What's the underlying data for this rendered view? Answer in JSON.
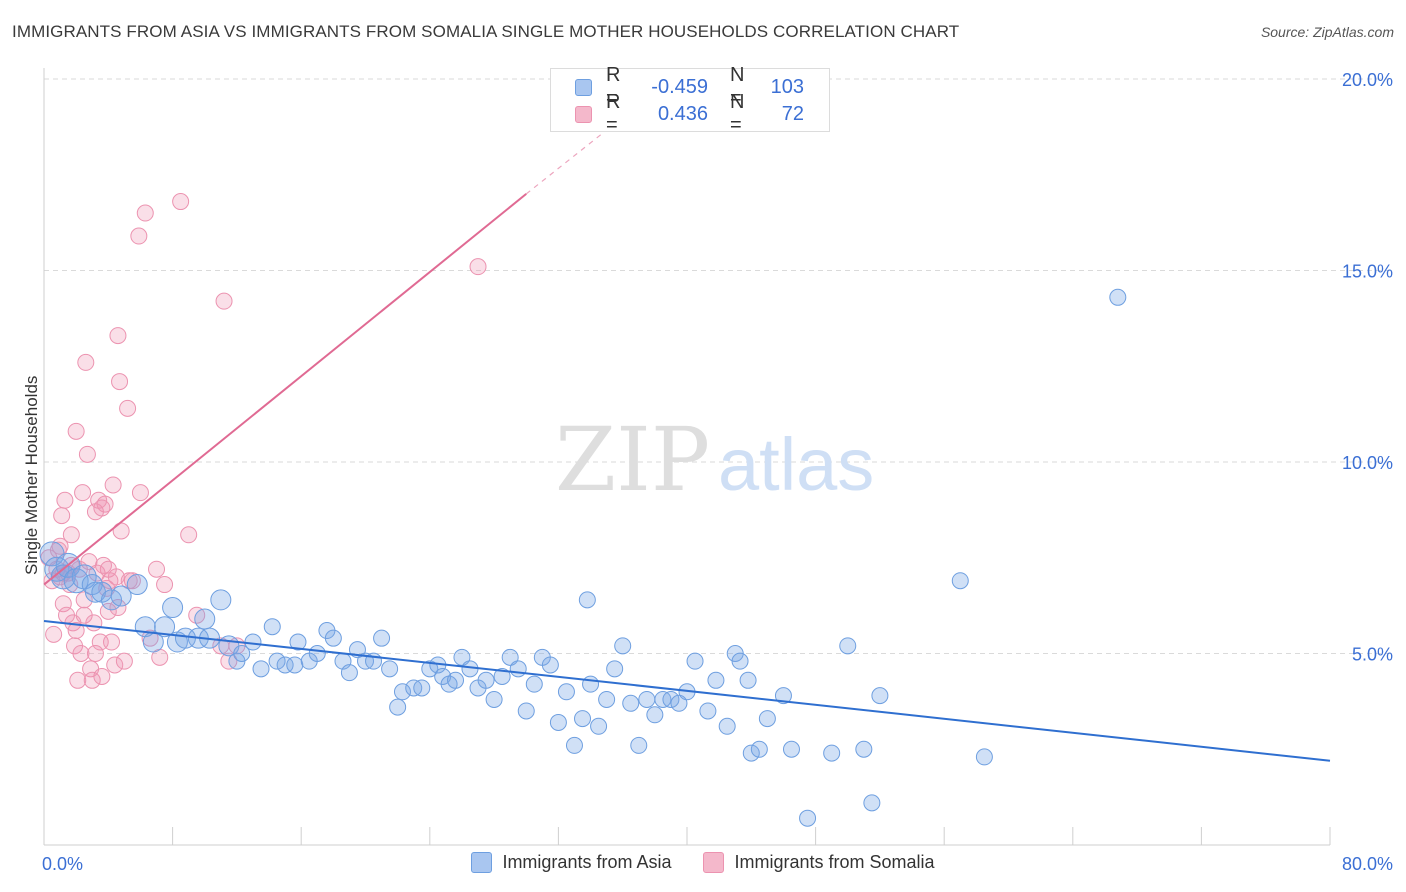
{
  "header": {
    "title": "IMMIGRANTS FROM ASIA VS IMMIGRANTS FROM SOMALIA SINGLE MOTHER HOUSEHOLDS CORRELATION CHART",
    "source": "Source: ZipAtlas.com"
  },
  "watermark": {
    "zip": "ZIP",
    "atlas": "atlas"
  },
  "legend": {
    "rows": [
      {
        "r_label": "R =",
        "r_value": "-0.459",
        "n_label": "N =",
        "n_value": "103",
        "color": "#a9c6f0"
      },
      {
        "r_label": "R =",
        "r_value": "0.436",
        "n_label": "N =",
        "n_value": "72",
        "color": "#f4b8cb"
      }
    ]
  },
  "bottom_legend": [
    {
      "label": "Immigrants from Asia",
      "color": "#a9c6f0"
    },
    {
      "label": "Immigrants from Somalia",
      "color": "#f4b8cb"
    }
  ],
  "colors": {
    "asia_fill": "rgba(120,165,230,0.35)",
    "asia_stroke": "#6e9fe0",
    "asia_line": "#2f6fd0",
    "somalia_fill": "rgba(240,150,180,0.30)",
    "somalia_stroke": "#ec93b0",
    "somalia_line": "#e06a93",
    "tick_text": "#3b6fd4"
  },
  "chart_data": {
    "type": "scatter",
    "title": "IMMIGRANTS FROM ASIA VS IMMIGRANTS FROM SOMALIA SINGLE MOTHER HOUSEHOLDS CORRELATION CHART",
    "xlabel": "",
    "ylabel": "Single Mother Households",
    "xlim": [
      0,
      80
    ],
    "ylim": [
      0,
      20
    ],
    "x_tick_labels": [
      "0.0%",
      "80.0%"
    ],
    "y_ticks": [
      5,
      10,
      15,
      20
    ],
    "y_tick_labels": [
      "5.0%",
      "10.0%",
      "15.0%",
      "20.0%"
    ],
    "grid": true,
    "legend_position": "top-center",
    "series": [
      {
        "name": "Immigrants from Asia",
        "r": -0.459,
        "n": 103,
        "trend": {
          "x": [
            0,
            80
          ],
          "y": [
            5.85,
            2.2
          ]
        },
        "points": [
          [
            0.5,
            7.6
          ],
          [
            0.8,
            7.2
          ],
          [
            1.2,
            7.0
          ],
          [
            1.5,
            7.3
          ],
          [
            2.0,
            6.9
          ],
          [
            2.5,
            7.0
          ],
          [
            3.0,
            6.8
          ],
          [
            3.2,
            6.6
          ],
          [
            3.6,
            6.6
          ],
          [
            4.2,
            6.4
          ],
          [
            4.8,
            6.5
          ],
          [
            5.8,
            6.8
          ],
          [
            6.3,
            5.7
          ],
          [
            6.8,
            5.3
          ],
          [
            7.5,
            5.7
          ],
          [
            8.0,
            6.2
          ],
          [
            8.3,
            5.3
          ],
          [
            8.8,
            5.4
          ],
          [
            9.6,
            5.4
          ],
          [
            10.0,
            5.9
          ],
          [
            10.3,
            5.4
          ],
          [
            11.0,
            6.4
          ],
          [
            11.5,
            5.2
          ],
          [
            12.0,
            4.8
          ],
          [
            12.3,
            5.0
          ],
          [
            13.0,
            5.3
          ],
          [
            13.5,
            4.6
          ],
          [
            14.2,
            5.7
          ],
          [
            14.5,
            4.8
          ],
          [
            15.0,
            4.7
          ],
          [
            15.6,
            4.7
          ],
          [
            15.8,
            5.3
          ],
          [
            16.5,
            4.8
          ],
          [
            17.0,
            5.0
          ],
          [
            17.6,
            5.6
          ],
          [
            18.0,
            5.4
          ],
          [
            18.6,
            4.8
          ],
          [
            19.0,
            4.5
          ],
          [
            19.5,
            5.1
          ],
          [
            20.0,
            4.8
          ],
          [
            20.5,
            4.8
          ],
          [
            21.0,
            5.4
          ],
          [
            21.5,
            4.6
          ],
          [
            22.0,
            3.6
          ],
          [
            22.3,
            4.0
          ],
          [
            23.0,
            4.1
          ],
          [
            23.5,
            4.1
          ],
          [
            24.0,
            4.6
          ],
          [
            24.5,
            4.7
          ],
          [
            24.8,
            4.4
          ],
          [
            25.2,
            4.2
          ],
          [
            25.6,
            4.3
          ],
          [
            26.0,
            4.9
          ],
          [
            26.5,
            4.6
          ],
          [
            27.0,
            4.1
          ],
          [
            27.5,
            4.3
          ],
          [
            28.0,
            3.8
          ],
          [
            28.5,
            4.4
          ],
          [
            29.0,
            4.9
          ],
          [
            29.5,
            4.6
          ],
          [
            30.0,
            3.5
          ],
          [
            30.5,
            4.2
          ],
          [
            31.0,
            4.9
          ],
          [
            31.5,
            4.7
          ],
          [
            32.0,
            3.2
          ],
          [
            32.5,
            4.0
          ],
          [
            33.0,
            2.6
          ],
          [
            33.5,
            3.3
          ],
          [
            34.0,
            4.2
          ],
          [
            34.5,
            3.1
          ],
          [
            35.0,
            3.8
          ],
          [
            35.5,
            4.6
          ],
          [
            36.0,
            5.2
          ],
          [
            36.5,
            3.7
          ],
          [
            37.0,
            2.6
          ],
          [
            37.5,
            3.8
          ],
          [
            38.0,
            3.4
          ],
          [
            38.5,
            3.8
          ],
          [
            39.0,
            3.8
          ],
          [
            39.5,
            3.7
          ],
          [
            40.0,
            4.0
          ],
          [
            40.5,
            4.8
          ],
          [
            41.3,
            3.5
          ],
          [
            41.8,
            4.3
          ],
          [
            42.5,
            3.1
          ],
          [
            43.0,
            5.0
          ],
          [
            43.3,
            4.8
          ],
          [
            43.8,
            4.3
          ],
          [
            44.0,
            2.4
          ],
          [
            44.5,
            2.5
          ],
          [
            45.0,
            3.3
          ],
          [
            46.0,
            3.9
          ],
          [
            46.5,
            2.5
          ],
          [
            47.5,
            0.7
          ],
          [
            49.0,
            2.4
          ],
          [
            50.0,
            5.2
          ],
          [
            51.0,
            2.5
          ],
          [
            51.5,
            1.1
          ],
          [
            52.0,
            3.9
          ],
          [
            57.0,
            6.9
          ],
          [
            58.5,
            2.3
          ],
          [
            66.8,
            14.3
          ],
          [
            33.8,
            6.4
          ]
        ]
      },
      {
        "name": "Immigrants from Somalia",
        "r": 0.436,
        "n": 72,
        "trend": {
          "x": [
            0,
            30
          ],
          "y": [
            6.8,
            17.0
          ]
        },
        "trend_dashed": {
          "x": [
            30,
            39
          ],
          "y": [
            17.0,
            20.0
          ]
        },
        "points": [
          [
            0.3,
            7.5
          ],
          [
            0.5,
            6.9
          ],
          [
            0.6,
            5.5
          ],
          [
            0.8,
            7.2
          ],
          [
            1.0,
            7.0
          ],
          [
            1.0,
            7.8
          ],
          [
            1.1,
            8.6
          ],
          [
            1.2,
            6.3
          ],
          [
            1.3,
            9.0
          ],
          [
            1.5,
            7.1
          ],
          [
            1.6,
            6.8
          ],
          [
            1.7,
            8.1
          ],
          [
            1.8,
            5.8
          ],
          [
            1.9,
            5.2
          ],
          [
            2.0,
            10.8
          ],
          [
            2.1,
            4.3
          ],
          [
            2.2,
            7.2
          ],
          [
            2.3,
            5.0
          ],
          [
            2.4,
            9.2
          ],
          [
            2.5,
            6.4
          ],
          [
            2.6,
            12.6
          ],
          [
            2.7,
            10.2
          ],
          [
            2.8,
            7.4
          ],
          [
            2.9,
            4.6
          ],
          [
            3.0,
            4.3
          ],
          [
            3.1,
            5.8
          ],
          [
            3.2,
            8.7
          ],
          [
            3.3,
            7.1
          ],
          [
            3.4,
            9.0
          ],
          [
            3.5,
            5.3
          ],
          [
            3.6,
            4.4
          ],
          [
            3.7,
            7.3
          ],
          [
            3.8,
            8.9
          ],
          [
            3.9,
            6.7
          ],
          [
            4.0,
            6.1
          ],
          [
            4.1,
            6.9
          ],
          [
            4.2,
            5.3
          ],
          [
            4.3,
            9.4
          ],
          [
            4.4,
            4.7
          ],
          [
            4.5,
            7.0
          ],
          [
            4.6,
            13.3
          ],
          [
            4.7,
            12.1
          ],
          [
            4.8,
            8.2
          ],
          [
            5.0,
            4.8
          ],
          [
            5.2,
            11.4
          ],
          [
            5.5,
            6.9
          ],
          [
            5.9,
            15.9
          ],
          [
            6.0,
            9.2
          ],
          [
            6.3,
            16.5
          ],
          [
            7.0,
            7.2
          ],
          [
            7.5,
            6.8
          ],
          [
            8.5,
            16.8
          ],
          [
            9.0,
            8.1
          ],
          [
            9.5,
            6.0
          ],
          [
            11.0,
            5.2
          ],
          [
            11.5,
            4.8
          ],
          [
            12.0,
            5.2
          ],
          [
            11.2,
            14.2
          ],
          [
            27.0,
            15.1
          ],
          [
            1.4,
            6.0
          ],
          [
            2.0,
            5.6
          ],
          [
            3.6,
            8.8
          ],
          [
            0.9,
            7.7
          ],
          [
            1.7,
            7.3
          ],
          [
            2.5,
            6.0
          ],
          [
            3.2,
            5.0
          ],
          [
            4.0,
            7.2
          ],
          [
            4.6,
            6.2
          ],
          [
            5.3,
            6.9
          ],
          [
            6.6,
            5.4
          ],
          [
            7.2,
            4.9
          ],
          [
            1.2,
            7.1
          ]
        ]
      }
    ]
  }
}
